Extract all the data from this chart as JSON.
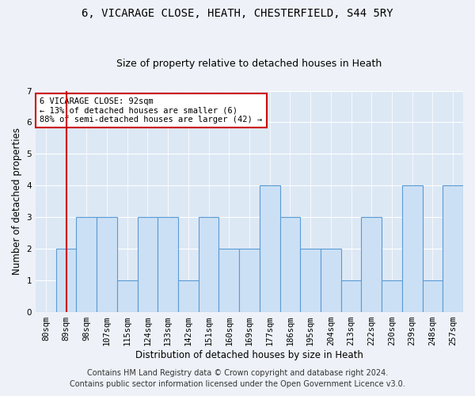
{
  "title": "6, VICARAGE CLOSE, HEATH, CHESTERFIELD, S44 5RY",
  "subtitle": "Size of property relative to detached houses in Heath",
  "xlabel": "Distribution of detached houses by size in Heath",
  "ylabel": "Number of detached properties",
  "bin_labels": [
    "80sqm",
    "89sqm",
    "98sqm",
    "107sqm",
    "115sqm",
    "124sqm",
    "133sqm",
    "142sqm",
    "151sqm",
    "160sqm",
    "169sqm",
    "177sqm",
    "186sqm",
    "195sqm",
    "204sqm",
    "213sqm",
    "222sqm",
    "230sqm",
    "239sqm",
    "248sqm",
    "257sqm"
  ],
  "bar_values": [
    0,
    2,
    3,
    3,
    1,
    3,
    3,
    1,
    3,
    2,
    2,
    4,
    3,
    2,
    2,
    1,
    3,
    1,
    4,
    1,
    4
  ],
  "bar_color": "#cce0f5",
  "bar_edge_color": "#5b9bd5",
  "subject_bin_index": 1,
  "subject_line_color": "#cc0000",
  "annotation_text": "6 VICARAGE CLOSE: 92sqm\n← 13% of detached houses are smaller (6)\n88% of semi-detached houses are larger (42) →",
  "annotation_box_color": "#ffffff",
  "annotation_box_edge_color": "#cc0000",
  "ylim": [
    0,
    7
  ],
  "yticks": [
    0,
    1,
    2,
    3,
    4,
    5,
    6,
    7
  ],
  "footer_line1": "Contains HM Land Registry data © Crown copyright and database right 2024.",
  "footer_line2": "Contains public sector information licensed under the Open Government Licence v3.0.",
  "bg_color": "#eef2f8",
  "plot_bg_color": "#dde8f5",
  "title_fontsize": 10,
  "subtitle_fontsize": 9,
  "axis_label_fontsize": 8.5,
  "tick_fontsize": 7.5,
  "footer_fontsize": 7
}
